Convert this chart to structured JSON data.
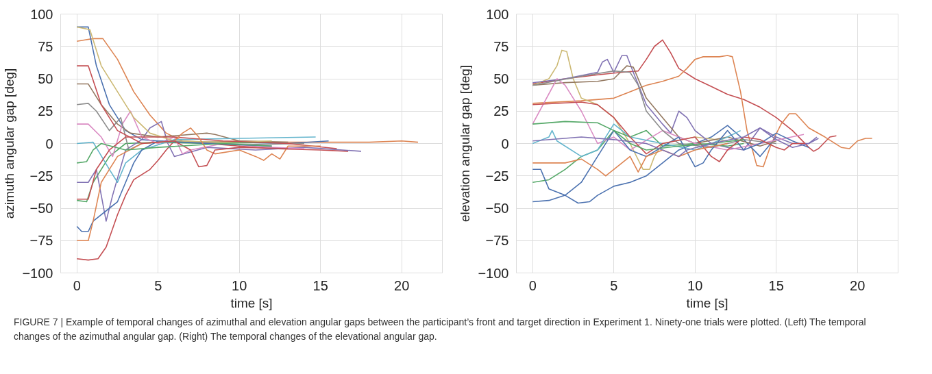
{
  "chart_data": [
    {
      "type": "line",
      "xlabel": "time [s]",
      "ylabel": "azimuth angular gap [deg]",
      "xlim": [
        -1,
        22.5
      ],
      "xticks": [
        0,
        5,
        10,
        15,
        20
      ],
      "ylim": [
        -100,
        100
      ],
      "yticks": [
        -100,
        -75,
        -50,
        -25,
        0,
        25,
        50,
        75,
        100
      ],
      "grid": true,
      "annotations": [
        "FIGURE 7 | Example of temporal changes of azimuthal and elevation angular gaps between the participant’s front and target direction in Experiment 1. Ninety-one trials were plotted. (Left) The temporal changes of the azimuthal angular gap. (Right) The temporal changes of the elevational angular gap."
      ],
      "series": [
        {
          "color": "#c44e52",
          "x": [
            0,
            0.7,
            1.3,
            1.8,
            2.5,
            3,
            3.5,
            4.5,
            5,
            5.5,
            6,
            8,
            10,
            12,
            15,
            16.7
          ],
          "values": [
            -89,
            -90,
            -89,
            -80,
            -55,
            -40,
            -28,
            -20,
            -13,
            -5,
            2,
            0,
            -2,
            -4,
            -5,
            -6
          ]
        },
        {
          "color": "#dd8452",
          "x": [
            0,
            0.5,
            1,
            1.6,
            2.5,
            3.5,
            4.5,
            5.5,
            6.5,
            8,
            10,
            12,
            15,
            18,
            20,
            21
          ],
          "values": [
            79,
            80,
            81,
            81,
            65,
            40,
            22,
            8,
            2,
            1,
            2,
            1,
            1,
            1,
            2,
            1
          ]
        },
        {
          "color": "#4c72b0",
          "x": [
            0,
            0.7,
            1.2,
            2,
            3,
            4,
            5,
            7,
            10,
            13,
            15.5
          ],
          "values": [
            90,
            90,
            60,
            30,
            10,
            3,
            2,
            1,
            1,
            0,
            2
          ]
        },
        {
          "color": "#55a868",
          "x": [
            0,
            0.6,
            1,
            2,
            3,
            5,
            8,
            12
          ],
          "values": [
            -44,
            -45,
            -30,
            -10,
            0,
            1,
            0,
            1
          ]
        },
        {
          "color": "#8172b3",
          "x": [
            0,
            0.7,
            1.2,
            1.8,
            2.2,
            3,
            4,
            4.5,
            5.2,
            5.6,
            6,
            8,
            11,
            14,
            17.5
          ],
          "values": [
            -30,
            -30,
            -20,
            -60,
            -40,
            -5,
            3,
            12,
            17,
            0,
            -10,
            -3,
            -5,
            -3,
            -6
          ]
        },
        {
          "color": "#937860",
          "x": [
            0,
            0.7,
            1.5,
            2.5,
            3.3,
            5,
            8,
            8.5,
            10,
            13
          ],
          "values": [
            46,
            46,
            30,
            15,
            8,
            5,
            8,
            7,
            2,
            1
          ]
        },
        {
          "color": "#da8bc3",
          "x": [
            0,
            0.7,
            1.5,
            2.2,
            2.8,
            3.3,
            4,
            5,
            6,
            6.5,
            7,
            9,
            12,
            14
          ],
          "values": [
            15,
            15,
            5,
            -10,
            15,
            25,
            5,
            0,
            5,
            -8,
            -5,
            0,
            -3,
            -4
          ]
        },
        {
          "color": "#8c8c8c",
          "x": [
            0,
            0.7,
            1.2,
            2,
            2.7,
            3.2,
            4,
            6,
            10,
            14
          ],
          "values": [
            30,
            31,
            25,
            10,
            20,
            -5,
            0,
            2,
            -1,
            0
          ]
        },
        {
          "color": "#ccb974",
          "x": [
            0,
            0.8,
            1.5,
            2.5,
            3.5,
            4.5,
            6,
            9,
            12
          ],
          "values": [
            90,
            88,
            60,
            40,
            20,
            8,
            2,
            1,
            2
          ]
        },
        {
          "color": "#64b5cd",
          "x": [
            0,
            1,
            2,
            2.5,
            3,
            4,
            6,
            10,
            14.7
          ],
          "values": [
            0,
            1,
            -20,
            -30,
            -15,
            -5,
            3,
            4,
            5
          ]
        },
        {
          "color": "#4c72b0",
          "x": [
            0,
            0.3,
            0.7,
            1,
            2,
            2.5,
            3,
            3.5,
            4,
            5,
            8,
            12
          ],
          "values": [
            -64,
            -68,
            -68,
            -60,
            -50,
            -45,
            -30,
            -15,
            -5,
            2,
            0,
            -2
          ]
        },
        {
          "color": "#c44e52",
          "x": [
            0,
            0.7,
            1.2,
            2,
            3,
            6,
            9,
            13,
            16
          ],
          "values": [
            -43,
            -43,
            -20,
            -5,
            5,
            5,
            2,
            0,
            -4
          ]
        },
        {
          "color": "#dd8452",
          "x": [
            0,
            0.7,
            1,
            1.5,
            2.5,
            4,
            6,
            6.5,
            7,
            7.5,
            8,
            8.5,
            10,
            11,
            11.5,
            12,
            12.5,
            13,
            15
          ],
          "values": [
            -75,
            -75,
            -60,
            -30,
            -10,
            0,
            2,
            8,
            12,
            5,
            -5,
            -8,
            -5,
            -10,
            -13,
            -8,
            -12,
            -2,
            -2
          ]
        },
        {
          "color": "#c44e52",
          "x": [
            0,
            0.7,
            1.5,
            2.5,
            4,
            6,
            7,
            7.5,
            8,
            8.5,
            10,
            13
          ],
          "values": [
            60,
            60,
            30,
            10,
            0,
            2,
            -5,
            -18,
            -17,
            -5,
            -3,
            -4
          ]
        },
        {
          "color": "#55a868",
          "x": [
            0,
            0.6,
            1,
            1.5,
            3,
            5,
            9,
            12
          ],
          "values": [
            -15,
            -14,
            -5,
            0,
            -5,
            -3,
            0,
            -2
          ]
        }
      ]
    },
    {
      "type": "line",
      "xlabel": "time [s]",
      "ylabel": "elevation angular gap [deg]",
      "xlim": [
        -1,
        22.5
      ],
      "xticks": [
        0,
        5,
        10,
        15,
        20
      ],
      "ylim": [
        -100,
        100
      ],
      "yticks": [
        -100,
        -75,
        -50,
        -25,
        0,
        25,
        50,
        75,
        100
      ],
      "grid": true,
      "series": [
        {
          "color": "#c44e52",
          "x": [
            0,
            2,
            4,
            5.5,
            6.5,
            7,
            7.5,
            8,
            8.5,
            9,
            10,
            11,
            12,
            13,
            14,
            15,
            16,
            17,
            17.3,
            17.6,
            18.3,
            18.7
          ],
          "values": [
            46,
            50,
            53,
            55,
            56,
            65,
            75,
            80,
            70,
            58,
            50,
            44,
            38,
            34,
            28,
            20,
            10,
            -3,
            -6,
            -4,
            5,
            6
          ]
        },
        {
          "color": "#dd8452",
          "x": [
            0,
            3,
            5,
            6,
            7,
            8,
            9,
            9.5,
            10,
            10.5,
            11.5,
            12,
            12.3,
            12.8,
            13.2,
            13.8,
            14.2,
            14.7,
            15.3,
            15.8,
            16.2,
            17,
            18,
            19,
            19.5,
            20,
            20.5,
            20.9
          ],
          "values": [
            31,
            33,
            35,
            40,
            45,
            48,
            52,
            58,
            65,
            67,
            67,
            68,
            67,
            40,
            10,
            -17,
            -18,
            0,
            15,
            23,
            23,
            12,
            5,
            -3,
            -4,
            2,
            4,
            4
          ]
        },
        {
          "color": "#4c72b0",
          "x": [
            0,
            1,
            2,
            2.8,
            3.5,
            4,
            5,
            6,
            7,
            8,
            9,
            10,
            11,
            12,
            13,
            14,
            15
          ],
          "values": [
            -45,
            -44,
            -40,
            -46,
            -45,
            -40,
            -33,
            -30,
            -25,
            -15,
            -5,
            0,
            5,
            14,
            3,
            -10,
            5
          ]
        },
        {
          "color": "#ccb974",
          "x": [
            0,
            1,
            1.5,
            1.8,
            2.1,
            2.5,
            3,
            4,
            5,
            6,
            6.8,
            7.2,
            7.5,
            8,
            10,
            12
          ],
          "values": [
            45,
            50,
            60,
            72,
            71,
            50,
            35,
            30,
            20,
            0,
            -20,
            -20,
            -10,
            0,
            5,
            2
          ]
        },
        {
          "color": "#8172b3",
          "x": [
            0,
            2,
            4,
            4.3,
            4.6,
            5,
            5.5,
            5.8,
            6.2,
            7,
            8,
            8.5,
            9,
            9.5,
            10,
            11,
            12,
            13,
            14,
            15,
            16,
            17,
            17.5
          ],
          "values": [
            47,
            50,
            55,
            63,
            65,
            55,
            68,
            68,
            55,
            30,
            15,
            8,
            25,
            20,
            10,
            0,
            -3,
            -5,
            12,
            5,
            0,
            0,
            5
          ]
        },
        {
          "color": "#55a868",
          "x": [
            0,
            1,
            2,
            3,
            4,
            5,
            6,
            7,
            8,
            10,
            12,
            13
          ],
          "values": [
            -30,
            -28,
            -20,
            -10,
            -5,
            10,
            5,
            10,
            -2,
            0,
            -2,
            0
          ]
        },
        {
          "color": "#937860",
          "x": [
            0,
            2,
            4,
            5,
            5.8,
            6.2,
            7,
            8,
            9,
            10,
            12,
            14,
            15
          ],
          "values": [
            45,
            47,
            48,
            50,
            60,
            59,
            35,
            20,
            5,
            0,
            5,
            -2,
            2
          ]
        },
        {
          "color": "#da8bc3",
          "x": [
            0,
            1.5,
            2,
            3,
            4,
            5,
            6,
            8,
            10,
            12,
            14,
            16.7
          ],
          "values": [
            15,
            50,
            45,
            25,
            0,
            5,
            -5,
            10,
            0,
            -5,
            0,
            7
          ]
        },
        {
          "color": "#8c8c8c",
          "x": [
            0,
            3,
            5,
            6,
            6.5,
            7,
            8,
            9,
            11,
            13,
            15
          ],
          "values": [
            45,
            52,
            56,
            55,
            45,
            25,
            10,
            0,
            -3,
            3,
            0
          ]
        },
        {
          "color": "#64b5cd",
          "x": [
            0,
            1,
            1.2,
            1.5,
            3,
            4,
            5,
            6,
            8,
            10,
            12,
            12.8
          ],
          "values": [
            0,
            5,
            10,
            2,
            -10,
            -5,
            15,
            5,
            0,
            -5,
            5,
            10
          ]
        },
        {
          "color": "#4c72b0",
          "x": [
            0,
            0.5,
            1,
            2,
            3,
            4,
            5,
            6,
            7,
            9,
            10,
            10.5,
            11,
            12,
            13,
            14,
            15,
            16,
            17
          ],
          "values": [
            -20,
            -20,
            -35,
            -40,
            -30,
            -10,
            10,
            -5,
            -10,
            5,
            -18,
            -15,
            -5,
            10,
            -5,
            0,
            8,
            2,
            -3
          ]
        },
        {
          "color": "#c44e52",
          "x": [
            0,
            3,
            4,
            5,
            6,
            7,
            8,
            10,
            11,
            11.5,
            12,
            13,
            14,
            15,
            15.5,
            16,
            16.8
          ],
          "values": [
            30,
            32,
            30,
            20,
            5,
            -8,
            0,
            5,
            -10,
            -14,
            -5,
            5,
            3,
            -3,
            -5,
            0,
            0
          ]
        },
        {
          "color": "#dd8452",
          "x": [
            0,
            2,
            3,
            4,
            4.5,
            5,
            6,
            6.5,
            7,
            8,
            9,
            10,
            12
          ],
          "values": [
            -15,
            -15,
            -12,
            -20,
            -25,
            -20,
            -10,
            -22,
            -10,
            -5,
            -10,
            -5,
            0
          ]
        },
        {
          "color": "#55a868",
          "x": [
            0,
            2,
            4,
            5,
            6,
            7,
            9,
            11,
            13
          ],
          "values": [
            15,
            17,
            16,
            10,
            0,
            -5,
            -2,
            0,
            3
          ]
        },
        {
          "color": "#8172b3",
          "x": [
            0,
            3,
            5,
            7,
            9,
            9.5,
            11,
            13,
            14,
            15,
            16,
            17,
            17.6
          ],
          "values": [
            2,
            5,
            3,
            0,
            -10,
            -5,
            0,
            5,
            12,
            3,
            -3,
            0,
            4
          ]
        }
      ]
    }
  ]
}
